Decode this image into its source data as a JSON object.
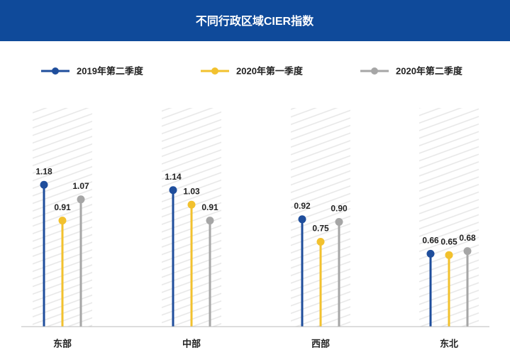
{
  "chart_data": {
    "type": "lollipop",
    "title": "不同行政区域CIER指数",
    "categories": [
      "东部",
      "中部",
      "西部",
      "东北"
    ],
    "series": [
      {
        "name": "2019年第二季度",
        "color": "#1f4e9c",
        "values": [
          1.18,
          1.14,
          0.92,
          0.66
        ],
        "value_labels": [
          "1.18",
          "1.14",
          "0.92",
          "0.66"
        ]
      },
      {
        "name": "2020年第一季度",
        "color": "#f2c12e",
        "values": [
          0.91,
          1.03,
          0.75,
          0.65
        ],
        "value_labels": [
          "0.91",
          "1.03",
          "0.75",
          "0.65"
        ]
      },
      {
        "name": "2020年第二季度",
        "color": "#a6a6a6",
        "values": [
          1.07,
          0.91,
          0.9,
          0.68
        ],
        "value_labels": [
          "1.07",
          "0.91",
          "0.90",
          "0.68"
        ]
      }
    ],
    "ylim": [
      0.11,
      1.76
    ]
  }
}
